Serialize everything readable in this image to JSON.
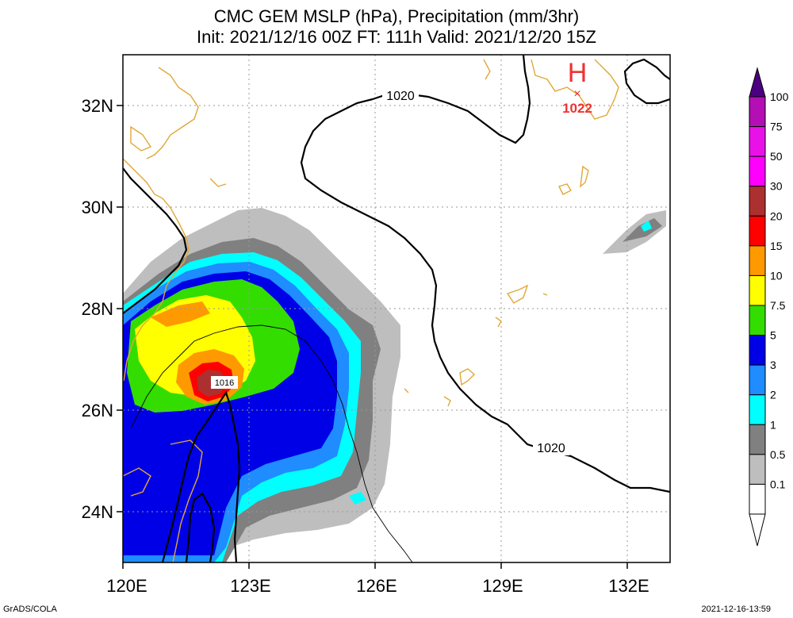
{
  "title": {
    "line1": "CMC GEM MSLP (hPa), Precipitation (mm/3hr)",
    "line2": "Init: 2021/12/16 00Z  FT: 111h  Valid: 2021/12/20 15Z"
  },
  "map": {
    "lon_labels": [
      "120E",
      "123E",
      "126E",
      "129E",
      "132E"
    ],
    "lat_labels": [
      "32N",
      "30N",
      "28N",
      "26N",
      "24N"
    ],
    "lon_range": [
      120,
      133
    ],
    "lat_range": [
      23,
      33
    ],
    "isobar_labels": [
      "1020",
      "1020",
      "1016"
    ],
    "high": {
      "symbol": "H",
      "value": "1022",
      "color": "#ee3333"
    }
  },
  "legend": {
    "ticks": [
      "100",
      "75",
      "50",
      "30",
      "20",
      "15",
      "10",
      "7.5",
      "5",
      "3",
      "2",
      "1",
      "0.5",
      "0.1"
    ],
    "colors": [
      "#7a0a9a",
      "#b40fb4",
      "#e812e8",
      "#ff00ff",
      "#ad3030",
      "#ff0000",
      "#ff9900",
      "#ffff00",
      "#33dd00",
      "#0000e6",
      "#1f8cff",
      "#00ffff",
      "#808080",
      "#bebebe",
      "#ffffff"
    ]
  },
  "footer": {
    "left": "GrADS/COLA",
    "right": "2021-12-16-13:59"
  }
}
